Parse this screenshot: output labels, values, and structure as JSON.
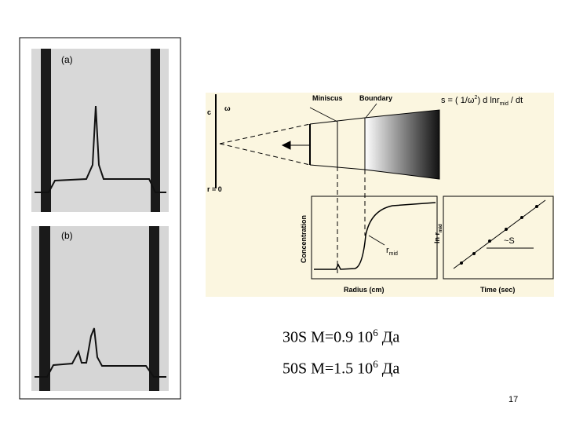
{
  "photo": {
    "panel_a": "(a)",
    "panel_b": "(b)"
  },
  "diagram": {
    "meniscus": "Miniscus",
    "boundary": "Boundary",
    "formula": {
      "lhs": "s = ( 1/ω",
      "exp": "2",
      "mid": ") d lnr",
      "sub": "mid",
      "rhs": " / dt"
    },
    "omega": "ω",
    "c_label": "c",
    "r0": "r = 0",
    "y_label": "Concentration",
    "rmid": {
      "main": "r",
      "sub": "mid"
    },
    "x_label": "Radius (cm)",
    "y2_label": {
      "main": "ln r",
      "sub": "mid"
    },
    "slope": "~S",
    "x2_label": "Time (sec)"
  },
  "captions": [
    {
      "prefix": "30S  M=0.9 10",
      "exp": "6",
      "suffix": " Да"
    },
    {
      "prefix": "50S  M=1.5 10",
      "exp": "6",
      "suffix": " Да"
    }
  ],
  "page_number": "17"
}
